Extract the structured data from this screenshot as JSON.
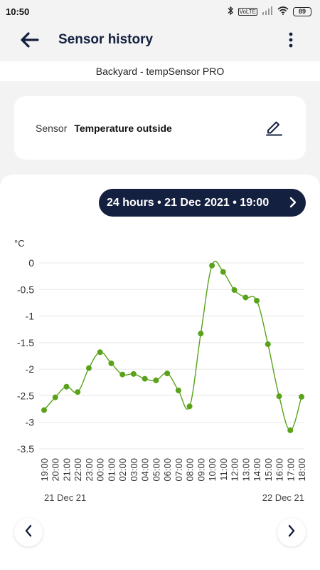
{
  "status_bar": {
    "time": "10:50",
    "battery": "89",
    "volte": "VoLTE"
  },
  "header": {
    "title": "Sensor history"
  },
  "device": {
    "name": "Backyard - tempSensor PRO"
  },
  "sensor": {
    "label": "Sensor",
    "value": "Temperature outside"
  },
  "range": {
    "label": "24 hours • 21 Dec 2021 • 19:00"
  },
  "icons": {
    "back": "arrow-left-icon",
    "menu": "more-vert-icon",
    "edit": "pencil-icon",
    "next": "chevron-right-icon",
    "prev": "chevron-left-icon"
  },
  "colors": {
    "navy": "#14203f",
    "series": "#5aa21a"
  },
  "chart_data": {
    "type": "line",
    "ylabel": "°C",
    "ylim": [
      -3.5,
      0
    ],
    "yticks": [
      0,
      -0.5,
      -1,
      -1.5,
      -2,
      -2.5,
      -3,
      -3.5
    ],
    "grid": true,
    "categories": [
      "19:00",
      "20:00",
      "21:00",
      "22:00",
      "23:00",
      "00:00",
      "01:00",
      "02:00",
      "03:00",
      "04:00",
      "05:00",
      "06:00",
      "07:00",
      "08:00",
      "09:00",
      "10:00",
      "11:00",
      "12:00",
      "13:00",
      "14:00",
      "15:00",
      "16:00",
      "17:00",
      "18:00"
    ],
    "date_labels": [
      "21 Dec 21",
      "22 Dec 21"
    ],
    "series": [
      {
        "values": [
          -2.77,
          -2.53,
          -2.33,
          -2.43,
          -1.98,
          -1.68,
          -1.89,
          -2.1,
          -2.09,
          -2.18,
          -2.21,
          -2.08,
          -2.4,
          -2.7,
          -1.33,
          -0.05,
          -0.17,
          -0.51,
          -0.65,
          -0.71,
          -1.53,
          -2.51,
          -3.15,
          -2.52
        ]
      }
    ]
  }
}
